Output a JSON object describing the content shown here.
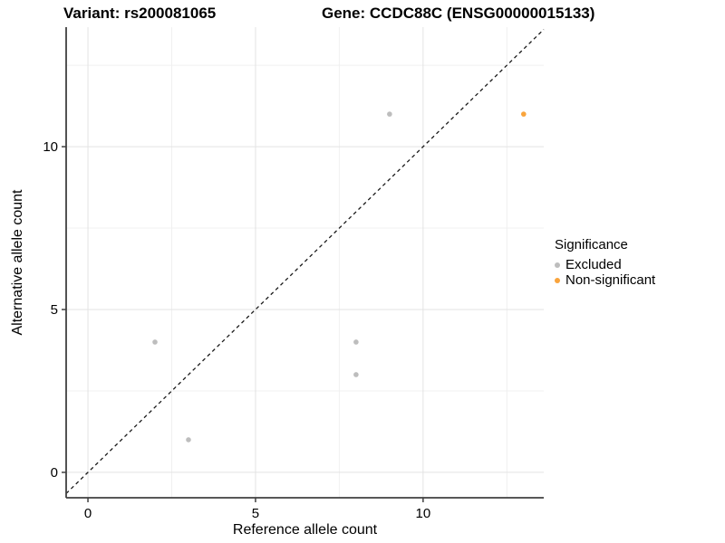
{
  "chart_data": {
    "type": "scatter",
    "title_left": "Variant: rs200081065",
    "title_right": "Gene: CCDC88C (ENSG00000015133)",
    "xlabel": "Reference allele count",
    "ylabel": "Alternative allele count",
    "xlim": [
      -0.65,
      13.6
    ],
    "ylim": [
      -0.78,
      13.67
    ],
    "x_major_ticks": [
      0,
      5,
      10
    ],
    "y_major_ticks": [
      0,
      5,
      10
    ],
    "x_minor_ticks": [
      2.5,
      7.5,
      12.5
    ],
    "y_minor_ticks": [
      2.5,
      7.5,
      12.5
    ],
    "grid": true,
    "legend_title": "Significance",
    "legend_position": "right",
    "identity_line": {
      "slope": 1,
      "intercept": 0,
      "style": "dashed",
      "color": "#1a1a1a"
    },
    "colors": {
      "major_grid": "#e3e3e3",
      "minor_grid": "#f0f0f0",
      "axis_line": "#404040",
      "tick_label": "#000000"
    },
    "series": [
      {
        "name": "Excluded",
        "color": "#bdbdbd",
        "points": [
          [
            2,
            4
          ],
          [
            3,
            1
          ],
          [
            8,
            3
          ],
          [
            8,
            4
          ],
          [
            9,
            11
          ]
        ]
      },
      {
        "name": "Non-significant",
        "color": "#f9a43c",
        "points": [
          [
            13,
            11
          ]
        ]
      }
    ]
  }
}
